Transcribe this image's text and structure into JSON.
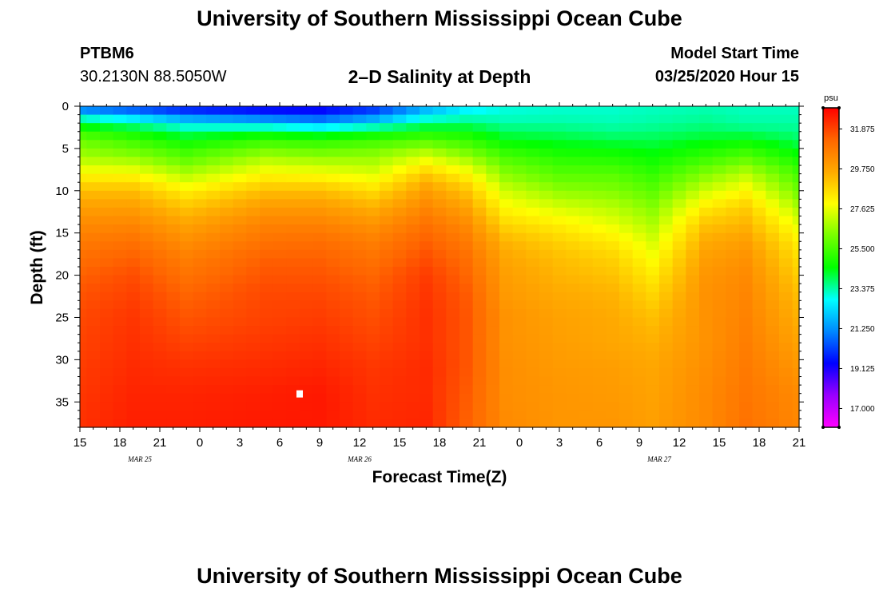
{
  "header": {
    "main_title": "University of Southern Mississippi Ocean Cube",
    "station_id": "PTBM6",
    "station_coords": "30.2130N 88.5050W",
    "plot_title": "2–D Salinity at Depth",
    "model_label": "Model Start Time",
    "model_time": "03/25/2020 Hour 15"
  },
  "footer": {
    "main_title": "University of Southern Mississippi Ocean Cube"
  },
  "colors": {
    "scale": [
      "#ff00ff",
      "#9900ff",
      "#0000ff",
      "#0088ff",
      "#00ffff",
      "#00ff00",
      "#77ff00",
      "#ffff00",
      "#ffaa00",
      "#ff6600",
      "#ff0000"
    ]
  },
  "chart_data": {
    "type": "heatmap",
    "title": "2–D Salinity at Depth",
    "xlabel": "Forecast Time(Z)",
    "ylabel": "Depth (ft)",
    "x_unit": "forecast hours from 03/25 15Z",
    "x_range": [
      0,
      54
    ],
    "x_ticks": [
      0,
      3,
      6,
      9,
      12,
      15,
      18,
      21,
      24,
      27,
      30,
      33,
      36,
      39,
      42,
      45,
      48,
      51,
      54
    ],
    "x_tick_labels": [
      "15",
      "18",
      "21",
      "0",
      "3",
      "6",
      "9",
      "12",
      "15",
      "18",
      "21",
      "0",
      "3",
      "6",
      "9",
      "12",
      "15",
      "18",
      "21"
    ],
    "date_labels": [
      {
        "x": 4.5,
        "text": "MAR  25"
      },
      {
        "x": 21,
        "text": "MAR  26"
      },
      {
        "x": 43.5,
        "text": "MAR  27"
      }
    ],
    "y_range": [
      0,
      38
    ],
    "y_ticks": [
      0,
      5,
      10,
      15,
      20,
      25,
      30,
      35
    ],
    "y_tick_labels": [
      "0",
      "5",
      "10",
      "15",
      "20",
      "25",
      "30",
      "35"
    ],
    "colorbar": {
      "unit": "psu",
      "min": 16.0,
      "max": 33.0,
      "ticks": [
        17.0,
        19.125,
        21.25,
        23.375,
        25.5,
        27.625,
        29.75,
        31.875
      ],
      "tick_labels": [
        "17.000",
        "19.125",
        "21.250",
        "23.375",
        "25.500",
        "27.625",
        "29.750",
        "31.875"
      ]
    },
    "grid_note": "salinity in psu, columns = forecast hour (0..54 step 1), rows = depth ft (0..38 step 1); generated from the control profiles below",
    "profile_depths": [
      0,
      1,
      2,
      3,
      4,
      5,
      6,
      7,
      8,
      9,
      10,
      12,
      14,
      16,
      18,
      20,
      22,
      25,
      28,
      31,
      34,
      38
    ],
    "profiles": [
      {
        "h": 0,
        "s": [
          20.0,
          22.5,
          24.0,
          25.2,
          26.0,
          26.4,
          26.8,
          27.4,
          28.0,
          28.6,
          29.2,
          29.9,
          30.4,
          30.8,
          31.1,
          31.4,
          31.6,
          31.8,
          31.9,
          32.0,
          32.1,
          32.2
        ]
      },
      {
        "h": 4,
        "s": [
          19.6,
          21.8,
          23.3,
          24.6,
          25.3,
          25.9,
          26.5,
          27.2,
          27.9,
          28.6,
          29.2,
          29.9,
          30.5,
          31.0,
          31.4,
          31.7,
          31.9,
          32.1,
          32.2,
          32.3,
          32.4,
          32.5
        ]
      },
      {
        "h": 8,
        "s": [
          19.2,
          20.8,
          22.4,
          23.8,
          24.5,
          25.2,
          25.7,
          26.3,
          26.9,
          27.5,
          28.2,
          29.1,
          29.8,
          30.3,
          30.7,
          31.0,
          31.3,
          31.6,
          31.9,
          32.2,
          32.4,
          32.5
        ]
      },
      {
        "h": 14,
        "s": [
          19.0,
          20.2,
          22.0,
          24.2,
          25.2,
          26.0,
          26.8,
          27.4,
          28.0,
          28.6,
          29.2,
          30.0,
          30.6,
          31.0,
          31.4,
          31.6,
          31.8,
          31.9,
          32.1,
          32.3,
          32.5,
          32.6
        ]
      },
      {
        "h": 18,
        "s": [
          19.0,
          20.0,
          21.5,
          23.8,
          25.0,
          25.8,
          26.5,
          27.2,
          27.8,
          28.5,
          29.2,
          30.0,
          30.6,
          31.1,
          31.4,
          31.6,
          31.8,
          32.0,
          32.2,
          32.4,
          32.6,
          32.6
        ]
      },
      {
        "h": 22,
        "s": [
          19.6,
          20.8,
          22.3,
          24.3,
          25.3,
          26.0,
          26.6,
          27.0,
          27.5,
          28.0,
          28.6,
          29.5,
          30.2,
          30.7,
          31.0,
          31.3,
          31.5,
          31.7,
          31.9,
          32.1,
          32.2,
          32.3
        ]
      },
      {
        "h": 26,
        "s": [
          21.2,
          22.5,
          23.5,
          24.8,
          25.6,
          26.6,
          27.4,
          28.2,
          28.9,
          29.5,
          29.9,
          30.5,
          31.0,
          31.4,
          31.7,
          32.0,
          32.1,
          32.2,
          32.2,
          32.3,
          32.3,
          32.4
        ]
      },
      {
        "h": 29,
        "s": [
          22.4,
          23.0,
          23.7,
          24.6,
          25.2,
          25.9,
          26.6,
          27.4,
          28.0,
          28.6,
          29.1,
          29.8,
          30.4,
          30.8,
          31.1,
          31.3,
          31.5,
          31.6,
          31.6,
          31.6,
          31.5,
          31.4
        ]
      },
      {
        "h": 32,
        "s": [
          23.0,
          23.1,
          23.4,
          23.9,
          24.4,
          25.0,
          25.5,
          26.0,
          26.4,
          26.8,
          27.3,
          28.0,
          28.7,
          29.4,
          29.7,
          29.9,
          30.0,
          30.2,
          30.2,
          30.3,
          30.3,
          30.4
        ]
      },
      {
        "h": 36,
        "s": [
          23.1,
          23.2,
          23.4,
          23.8,
          24.2,
          24.6,
          25.0,
          25.4,
          25.7,
          26.1,
          26.5,
          27.4,
          28.2,
          28.8,
          29.2,
          29.4,
          29.6,
          29.8,
          29.9,
          30.0,
          30.1,
          30.1
        ]
      },
      {
        "h": 40,
        "s": [
          23.1,
          23.2,
          23.3,
          23.6,
          24.0,
          24.5,
          24.9,
          25.3,
          25.7,
          26.0,
          26.3,
          27.0,
          27.6,
          28.3,
          28.8,
          29.1,
          29.4,
          29.6,
          29.7,
          29.9,
          30.0,
          30.1
        ]
      },
      {
        "h": 43,
        "s": [
          23.2,
          23.3,
          23.4,
          23.7,
          24.0,
          24.3,
          24.6,
          24.9,
          25.2,
          25.5,
          25.8,
          26.4,
          26.9,
          27.4,
          27.9,
          28.3,
          28.7,
          29.2,
          29.5,
          29.7,
          29.8,
          29.9
        ]
      },
      {
        "h": 47,
        "s": [
          23.3,
          23.4,
          23.6,
          23.9,
          24.3,
          24.8,
          25.2,
          25.8,
          26.3,
          26.8,
          27.3,
          28.3,
          29.1,
          29.6,
          29.9,
          30.1,
          30.2,
          30.2,
          30.2,
          30.3,
          30.4,
          30.4
        ]
      },
      {
        "h": 50,
        "s": [
          23.2,
          23.3,
          23.4,
          23.8,
          24.5,
          25.1,
          25.7,
          26.4,
          27.0,
          27.5,
          28.0,
          28.9,
          29.4,
          29.9,
          30.2,
          30.4,
          30.5,
          30.6,
          30.7,
          30.8,
          30.9,
          31.0
        ]
      },
      {
        "h": 54,
        "s": [
          23.2,
          23.3,
          23.4,
          23.6,
          23.9,
          24.3,
          24.7,
          25.1,
          25.5,
          25.8,
          26.1,
          26.9,
          27.6,
          28.2,
          28.6,
          28.9,
          29.2,
          29.5,
          29.8,
          30.1,
          30.4,
          30.5
        ]
      }
    ],
    "marker": {
      "x": 16.5,
      "y": 34.0,
      "label": "white square marker"
    }
  }
}
